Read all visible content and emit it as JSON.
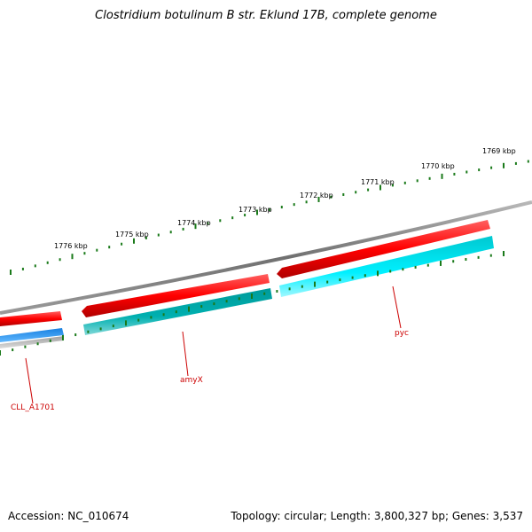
{
  "title": "Clostridium botulinum B str. Eklund 17B, complete genome",
  "accession_label": "Accession: NC_010674",
  "summary_label": "Topology: circular; Length: 3,800,327 bp; Genes: 3,537",
  "colors": {
    "backbone": "#808080",
    "tick": "#1a7a1a",
    "forward_gene": "#ff0000",
    "reverse_gene_a": "#00aaaa",
    "reverse_gene_b": "#00e5ee",
    "reverse_gene_c": "#1e90ff",
    "reverse_gene_d": "#b0b0b0",
    "gene_label": "#cc0000"
  },
  "scale_labels": [
    "1776 kbp",
    "1775 kbp",
    "1774 kbp",
    "1773 kbp",
    "1772 kbp",
    "1771 kbp",
    "1770 kbp",
    "1769 kbp"
  ],
  "genes": [
    {
      "name": "CLL_A1701"
    },
    {
      "name": "amyX"
    },
    {
      "name": "pyc"
    }
  ]
}
